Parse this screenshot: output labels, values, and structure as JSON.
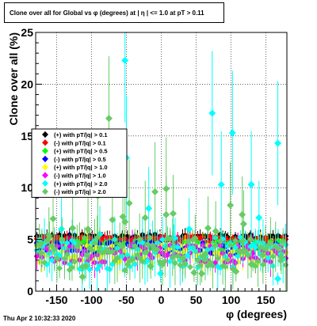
{
  "title": "Clone  over all for Global vs φ (degrees) at | η | <= 1.0 at pT > 0.11",
  "footer": "Thu Apr  2 10:32:33 2020",
  "chart_data": {
    "type": "scatter",
    "title": "Clone  over all for Global vs φ (degrees) at | η | <= 1.0 at pT > 0.11",
    "xlabel": "φ (degrees)",
    "ylabel": "Clone  over all (%)",
    "xlim": [
      -180,
      180
    ],
    "ylim": [
      0,
      25
    ],
    "xticks": [
      -150,
      -100,
      -50,
      0,
      50,
      100,
      150
    ],
    "yticks": [
      0,
      5,
      10,
      15,
      20,
      25
    ],
    "grid": true,
    "legend_position": "middle-left",
    "series": [
      {
        "name": "(+) with pT/|q| > 0.1",
        "color": "#000000",
        "marker": "diamond",
        "level": 5.2,
        "spread": 0.3
      },
      {
        "name": "(-) with pT/|q| > 0.1",
        "color": "#ff0000",
        "marker": "diamond",
        "level": 5.0,
        "spread": 0.3
      },
      {
        "name": "(+) with pT/|q| > 0.5",
        "color": "#00ff00",
        "marker": "diamond",
        "level": 4.3,
        "spread": 0.6
      },
      {
        "name": "(-) with pT/|q| > 0.5",
        "color": "#0000ff",
        "marker": "diamond",
        "level": 4.2,
        "spread": 0.6
      },
      {
        "name": "(+) with pT/|q| > 1.0",
        "color": "#ffff00",
        "marker": "diamond",
        "level": 3.6,
        "spread": 0.9
      },
      {
        "name": "(-) with pT/|q| > 1.0",
        "color": "#ff00ff",
        "marker": "diamond",
        "level": 3.6,
        "spread": 0.9
      },
      {
        "name": "(+) with pT/|q| > 2.0",
        "color": "#00ffff",
        "marker": "diamond",
        "level": 3.6,
        "spread": 1.6,
        "outliers": [
          [
            -143,
            6.0
          ],
          [
            -88,
            5.5
          ],
          [
            -52,
            22.3
          ],
          [
            -50,
            12.9
          ],
          [
            -18,
            8.0
          ],
          [
            -1,
            1.7
          ],
          [
            18,
            4.3
          ],
          [
            40,
            6.0
          ],
          [
            73,
            17.2
          ],
          [
            86,
            10.3
          ],
          [
            102,
            15.3
          ],
          [
            129,
            10.3
          ],
          [
            140,
            7.1
          ],
          [
            167,
            14.3
          ],
          [
            167,
            1.2
          ]
        ]
      },
      {
        "name": "(-) with pT/|q| > 2.0",
        "color": "#66cc66",
        "marker": "diamond",
        "level": 3.6,
        "spread": 1.6,
        "outliers": [
          [
            -172,
            3.7
          ],
          [
            -161,
            5.4
          ],
          [
            -155,
            7.0
          ],
          [
            -127,
            6.1
          ],
          [
            -113,
            1.4
          ],
          [
            -108,
            2.4
          ],
          [
            -105,
            6.0
          ],
          [
            -91,
            9.2
          ],
          [
            -75,
            16.7
          ],
          [
            -70,
            6.9
          ],
          [
            -55,
            7.2
          ],
          [
            -52,
            6.7
          ],
          [
            -46,
            8.5
          ],
          [
            -31,
            5.0
          ],
          [
            -23,
            7.1
          ],
          [
            -15,
            2.4
          ],
          [
            -9,
            9.6
          ],
          [
            7,
            9.9
          ],
          [
            7,
            7.4
          ],
          [
            17,
            7.5
          ],
          [
            31,
            3.2
          ],
          [
            47,
            1.8
          ],
          [
            58,
            1.7
          ],
          [
            63,
            3.6
          ],
          [
            67,
            6.1
          ],
          [
            78,
            5.8
          ],
          [
            99,
            8.3
          ],
          [
            107,
            1.9
          ],
          [
            116,
            7.4
          ],
          [
            118,
            6.5
          ],
          [
            129,
            2.6
          ],
          [
            145,
            3.5
          ],
          [
            172,
            3.3
          ]
        ]
      }
    ]
  }
}
